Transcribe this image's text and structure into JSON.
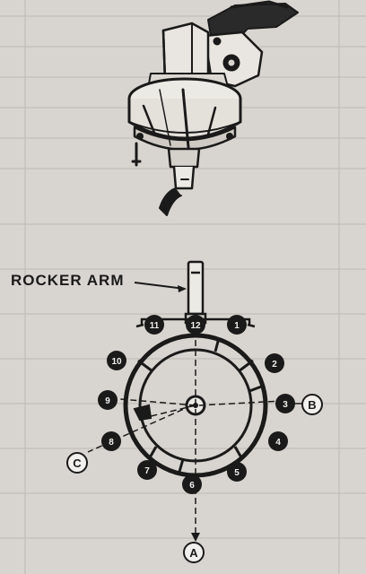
{
  "labels": {
    "rocker_arm": "ROCKER ARM",
    "ref_a": "A",
    "ref_b": "B",
    "ref_c": "C"
  },
  "positions": [
    {
      "id": "12",
      "label": "12"
    },
    {
      "id": "1",
      "label": "1"
    },
    {
      "id": "11",
      "label": "11"
    },
    {
      "id": "10",
      "label": "10"
    },
    {
      "id": "2",
      "label": "2"
    },
    {
      "id": "9",
      "label": "9"
    },
    {
      "id": "3",
      "label": "3"
    },
    {
      "id": "8",
      "label": "8"
    },
    {
      "id": "4",
      "label": "4"
    },
    {
      "id": "7",
      "label": "7"
    },
    {
      "id": "5",
      "label": "5"
    },
    {
      "id": "6",
      "label": "6"
    }
  ],
  "colors": {
    "ink": "#1a1a1a",
    "paper": "#d8d5d0",
    "faint": "#bdb9b3"
  }
}
